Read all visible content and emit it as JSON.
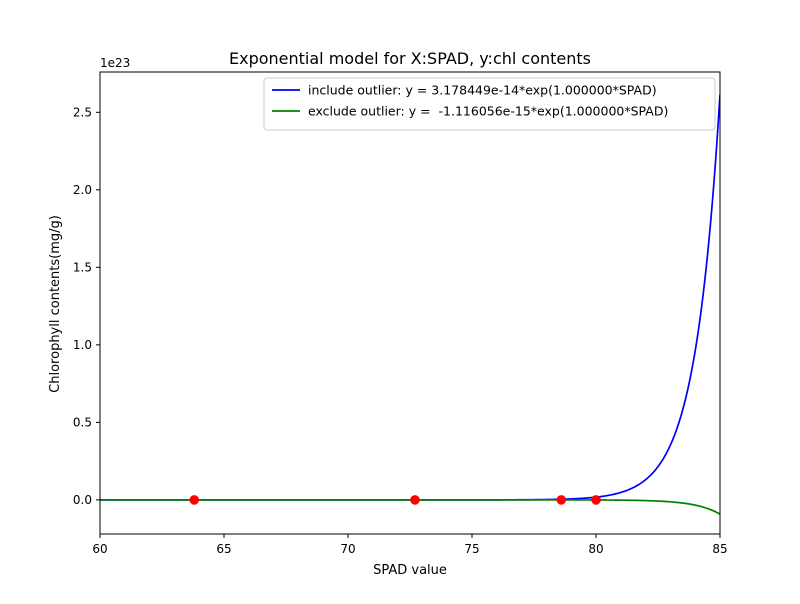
{
  "chart_data": {
    "type": "line",
    "title": "Exponential model for X:SPAD, y:chl contents",
    "xlabel": "SPAD value",
    "ylabel": "Chlorophyll contents(mg/g)",
    "y_offset_label": "1e23",
    "xlim": [
      60,
      85
    ],
    "ylim": [
      -0.22,
      2.76
    ],
    "y_unit_multiplier": 1e+23,
    "x_ticks": [
      60,
      65,
      70,
      75,
      80,
      85
    ],
    "x_tick_labels": [
      "60",
      "65",
      "70",
      "75",
      "80",
      "85"
    ],
    "y_ticks": [
      0.0,
      0.5,
      1.0,
      1.5,
      2.0,
      2.5
    ],
    "y_tick_labels": [
      "0.0",
      "0.5",
      "1.0",
      "1.5",
      "2.0",
      "2.5"
    ],
    "grid": false,
    "legend_position": "top-right",
    "series": [
      {
        "name": "include outlier: y = 3.178449e-14*exp(1.000000*SPAD)",
        "kind": "line",
        "color": "#0000ff",
        "coefficient": 3.178449e-14,
        "rate": 1.0
      },
      {
        "name": "exclude outlier: y =  -1.116056e-15*exp(1.000000*SPAD)",
        "kind": "line",
        "color": "#008000",
        "coefficient": -1.116056e-15,
        "rate": 1.0
      },
      {
        "kind": "scatter",
        "color": "#ff0000",
        "points": [
          {
            "x": 63.8,
            "y": 0.0
          },
          {
            "x": 72.7,
            "y": 0.0
          },
          {
            "x": 78.6,
            "y": 0.0
          },
          {
            "x": 80.0,
            "y": 0.0
          }
        ]
      }
    ]
  }
}
